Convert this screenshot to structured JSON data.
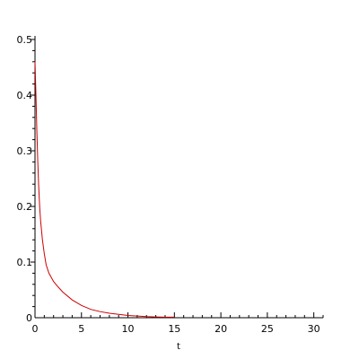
{
  "chart_data": {
    "type": "line",
    "title": "",
    "xlabel": "t",
    "ylabel": "",
    "xlim": [
      0,
      31
    ],
    "ylim": [
      0,
      0.5
    ],
    "grid": false,
    "legend": "none",
    "x_ticks": [
      0,
      5,
      10,
      15,
      20,
      25,
      30
    ],
    "x_tick_labels": [
      "0",
      "5",
      "10",
      "15",
      "20",
      "25",
      "30"
    ],
    "y_ticks": [
      0,
      0.1,
      0.2,
      0.3,
      0.4,
      0.5
    ],
    "y_tick_labels": [
      "0",
      "0.1",
      "0.2",
      "0.3",
      "0.4",
      "0.5"
    ],
    "series": [
      {
        "color": "#cc0000",
        "x": [
          0,
          0.05,
          0.1,
          0.2,
          0.3,
          0.4,
          0.5,
          0.6,
          0.8,
          1.0,
          1.2,
          1.5,
          2.0,
          2.5,
          3.0,
          4.0,
          5.0,
          6.0,
          7.0,
          8.0,
          9.0,
          10.0,
          11.0,
          12.0,
          13.0,
          14.0,
          15.0
        ],
        "y": [
          0.46,
          0.43,
          0.4,
          0.335,
          0.28,
          0.235,
          0.2,
          0.175,
          0.14,
          0.115,
          0.095,
          0.08,
          0.065,
          0.055,
          0.046,
          0.032,
          0.022,
          0.015,
          0.011,
          0.008,
          0.006,
          0.004,
          0.003,
          0.002,
          0.0015,
          0.001,
          0.001
        ]
      }
    ]
  }
}
